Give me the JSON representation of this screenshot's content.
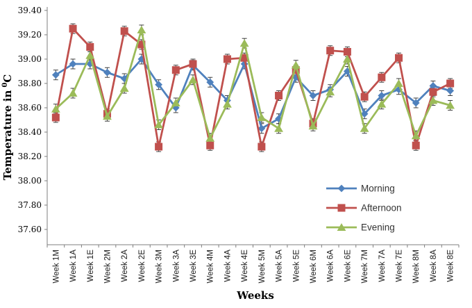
{
  "chart_data": {
    "type": "line",
    "title": "",
    "xlabel": "Weeks",
    "ylabel_parts": {
      "text": "Temperature in",
      "sup": "0",
      "unit": "C"
    },
    "ylim": [
      37.6,
      39.4
    ],
    "ytick_step": 0.2,
    "yticks": [
      "39.40",
      "39.20",
      "39.00",
      "38.80",
      "38.60",
      "38.40",
      "38.20",
      "38.00",
      "37.80",
      "37.60"
    ],
    "grid": false,
    "legend_position": "inside-bottom-right",
    "error_bar": 0.04,
    "categories": [
      "Week 1M",
      "Week 1A",
      "Week 1E",
      "Week 2M",
      "Week 2A",
      "Week 2E",
      "Week 3M",
      "Week 3A",
      "Week 3E",
      "Week 4M",
      "Week 4A",
      "Week 4E",
      "Week 5M",
      "Week 5A",
      "Week 5E",
      "Week 6M",
      "Week 6A",
      "Week 6E",
      "Week 7M",
      "Week 7A",
      "Week 7E",
      "Week 8M",
      "Week 8A",
      "Week 8E"
    ],
    "series": [
      {
        "name": "Morning",
        "marker": "diamond",
        "color": "#4F81BD",
        "values": [
          38.87,
          38.96,
          38.96,
          38.89,
          38.84,
          39.0,
          38.79,
          38.6,
          38.95,
          38.81,
          38.66,
          38.96,
          38.43,
          38.51,
          38.85,
          38.7,
          38.75,
          38.9,
          38.55,
          38.7,
          38.75,
          38.64,
          38.78,
          38.74
        ]
      },
      {
        "name": "Afternoon",
        "marker": "square",
        "color": "#C0504D",
        "values": [
          38.52,
          39.25,
          39.1,
          38.55,
          39.23,
          39.12,
          38.28,
          38.91,
          38.96,
          38.29,
          39.0,
          39.01,
          38.28,
          38.7,
          38.91,
          38.47,
          39.07,
          39.06,
          38.69,
          38.85,
          39.01,
          38.29,
          38.73,
          38.8
        ]
      },
      {
        "name": "Evening",
        "marker": "triangle",
        "color": "#9BBB59",
        "values": [
          38.59,
          38.72,
          39.03,
          38.53,
          38.76,
          39.24,
          38.46,
          38.64,
          38.83,
          38.35,
          38.63,
          39.13,
          38.52,
          38.43,
          38.95,
          38.45,
          38.73,
          39.0,
          38.43,
          38.63,
          38.8,
          38.37,
          38.66,
          38.62
        ]
      }
    ],
    "error_bar_color": "#404040",
    "axis_color": "#7f7f7f"
  }
}
